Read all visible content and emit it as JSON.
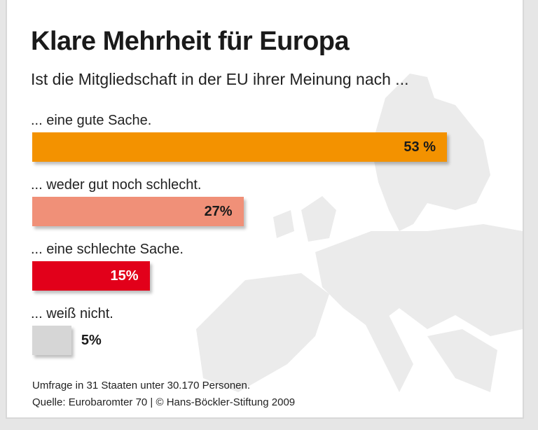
{
  "chart_data": {
    "type": "bar",
    "orientation": "horizontal",
    "title": "Klare Mehrheit für Europa",
    "subtitle": "Ist die Mitgliedschaft in der EU ihrer Meinung nach ...",
    "categories": [
      "... eine gute Sache.",
      "... weder gut noch schlecht.",
      "... eine schlechte Sache.",
      "... weiß nicht."
    ],
    "values": [
      53,
      27,
      15,
      5
    ],
    "value_labels": [
      "53 %",
      "27%",
      "15%",
      "5%"
    ],
    "colors": [
      "#f39200",
      "#f09078",
      "#e2001a",
      "#d6d6d6"
    ],
    "label_colors": [
      "#1a1a1a",
      "#1a1a1a",
      "#ffffff",
      "#1a1a1a"
    ],
    "xlim": [
      0,
      53
    ],
    "grid": false,
    "background": "map of Europe in light gray"
  },
  "footer": {
    "line1": "Umfrage in 31 Staaten unter 30.170 Personen.",
    "line2": "Quelle: Eurobaromter 70 | © Hans-Böckler-Stiftung 2009"
  }
}
